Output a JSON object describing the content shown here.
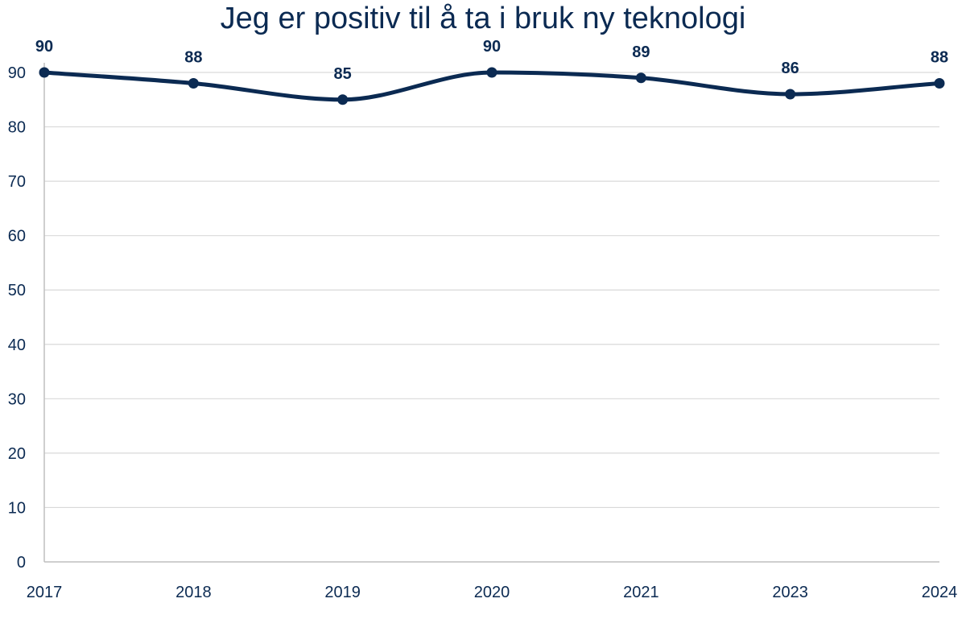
{
  "chart_data": {
    "type": "line",
    "title": "Jeg er positiv til å ta i bruk ny teknologi",
    "categories": [
      "2017",
      "2018",
      "2019",
      "2020",
      "2021",
      "2023",
      "2024"
    ],
    "series": [
      {
        "values": [
          90,
          88,
          85,
          90,
          89,
          86,
          88
        ]
      }
    ],
    "ylim": [
      0,
      90
    ],
    "yticks": [
      0,
      10,
      20,
      30,
      40,
      50,
      60,
      70,
      80,
      90
    ],
    "grid": true,
    "data_labels": true,
    "line_color": "#0b2a52",
    "grid_color": "#d9d9d9",
    "axis_color": "#bfbfbf"
  }
}
